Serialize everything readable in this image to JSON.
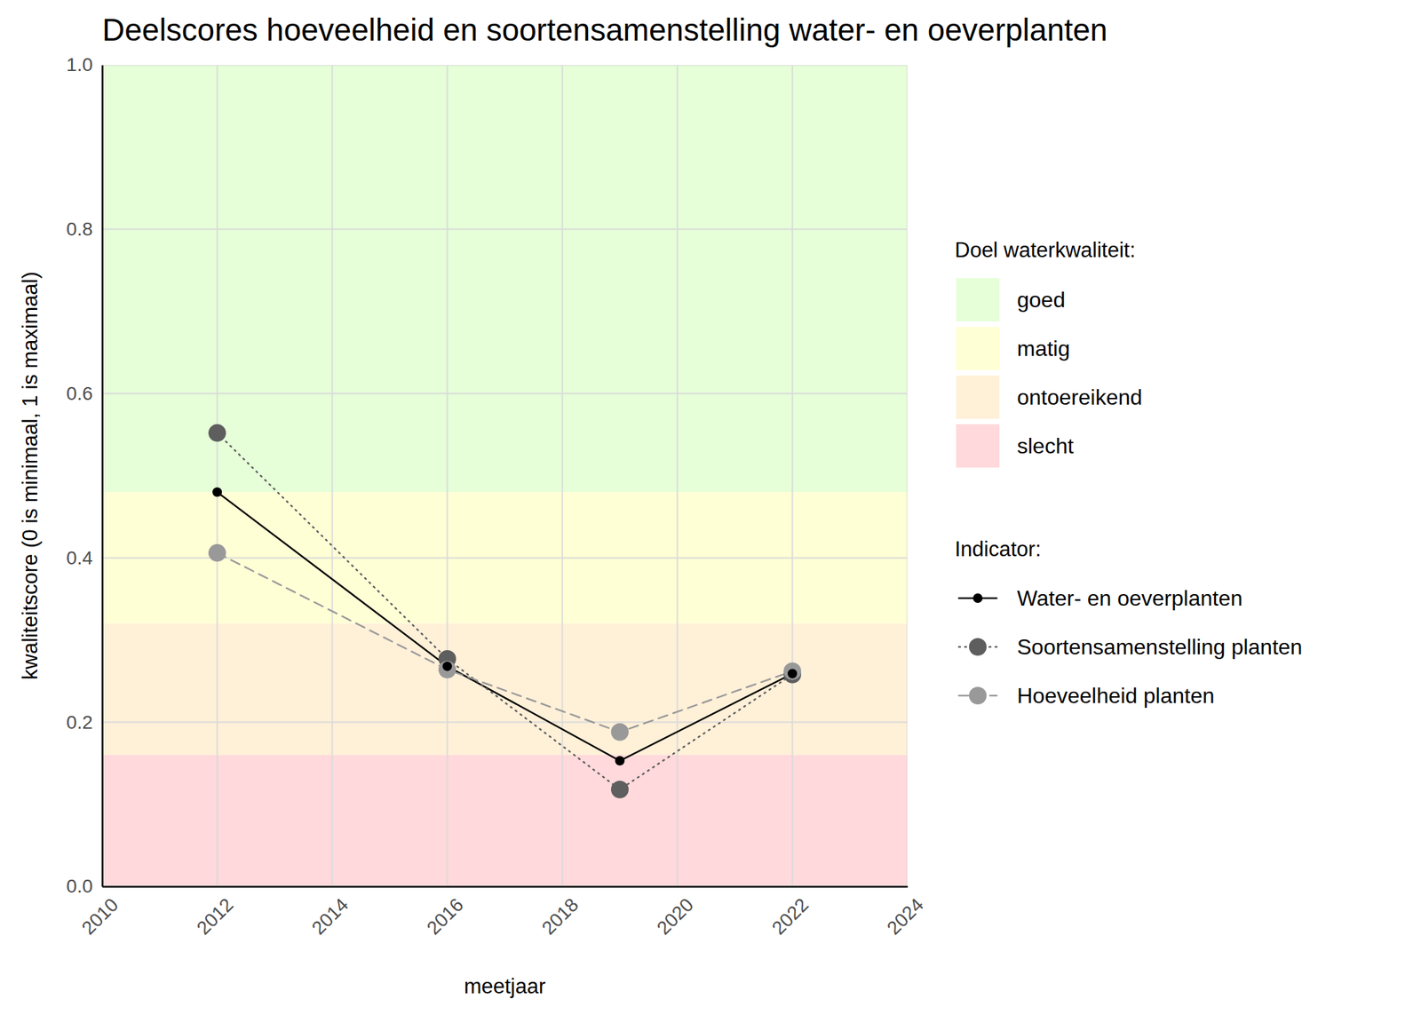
{
  "chart_data": {
    "type": "line",
    "title": "Deelscores hoeveelheid en soortensamenstelling water- en oeverplanten",
    "x_label": "meetjaar",
    "y_label": "kwaliteitscore (0 is minimaal, 1 is maximaal)",
    "x": [
      2012,
      2016,
      2019,
      2022
    ],
    "series": [
      {
        "name": "Water- en oeverplanten",
        "color": "#000000",
        "marker": "point",
        "line_style": "solid",
        "values": [
          0.48,
          0.268,
          0.153,
          0.259
        ]
      },
      {
        "name": "Soortensamenstelling planten",
        "color": "#5e5e5e",
        "marker": "circle",
        "line_style": "dotted",
        "values": [
          0.552,
          0.277,
          0.118,
          0.258
        ]
      },
      {
        "name": "Hoeveelheid planten",
        "color": "#999999",
        "marker": "circle",
        "line_style": "dashed",
        "values": [
          0.406,
          0.264,
          0.188,
          0.262
        ]
      }
    ],
    "legend_title": "Indicator:",
    "bands_title": "Doel waterkwaliteit:",
    "bands": [
      {
        "name": "goed",
        "from": 0.48,
        "to": 1.0,
        "color": "#e6ffd8"
      },
      {
        "name": "matig",
        "from": 0.32,
        "to": 0.48,
        "color": "#ffffd6"
      },
      {
        "name": "ontoereikend",
        "from": 0.16,
        "to": 0.32,
        "color": "#fff0d8"
      },
      {
        "name": "slecht",
        "from": 0.0,
        "to": 0.16,
        "color": "#ffd9db"
      }
    ],
    "xlim": [
      2010,
      2024
    ],
    "xticks": [
      2010,
      2012,
      2014,
      2016,
      2018,
      2020,
      2022,
      2024
    ],
    "ylim": [
      0,
      1
    ],
    "yticks": [
      {
        "value": 0,
        "label": "0.0"
      },
      0.2,
      0.4,
      0.6,
      0.8,
      {
        "value": 1,
        "label": "1.0"
      }
    ],
    "grid": true,
    "legend": "right"
  }
}
